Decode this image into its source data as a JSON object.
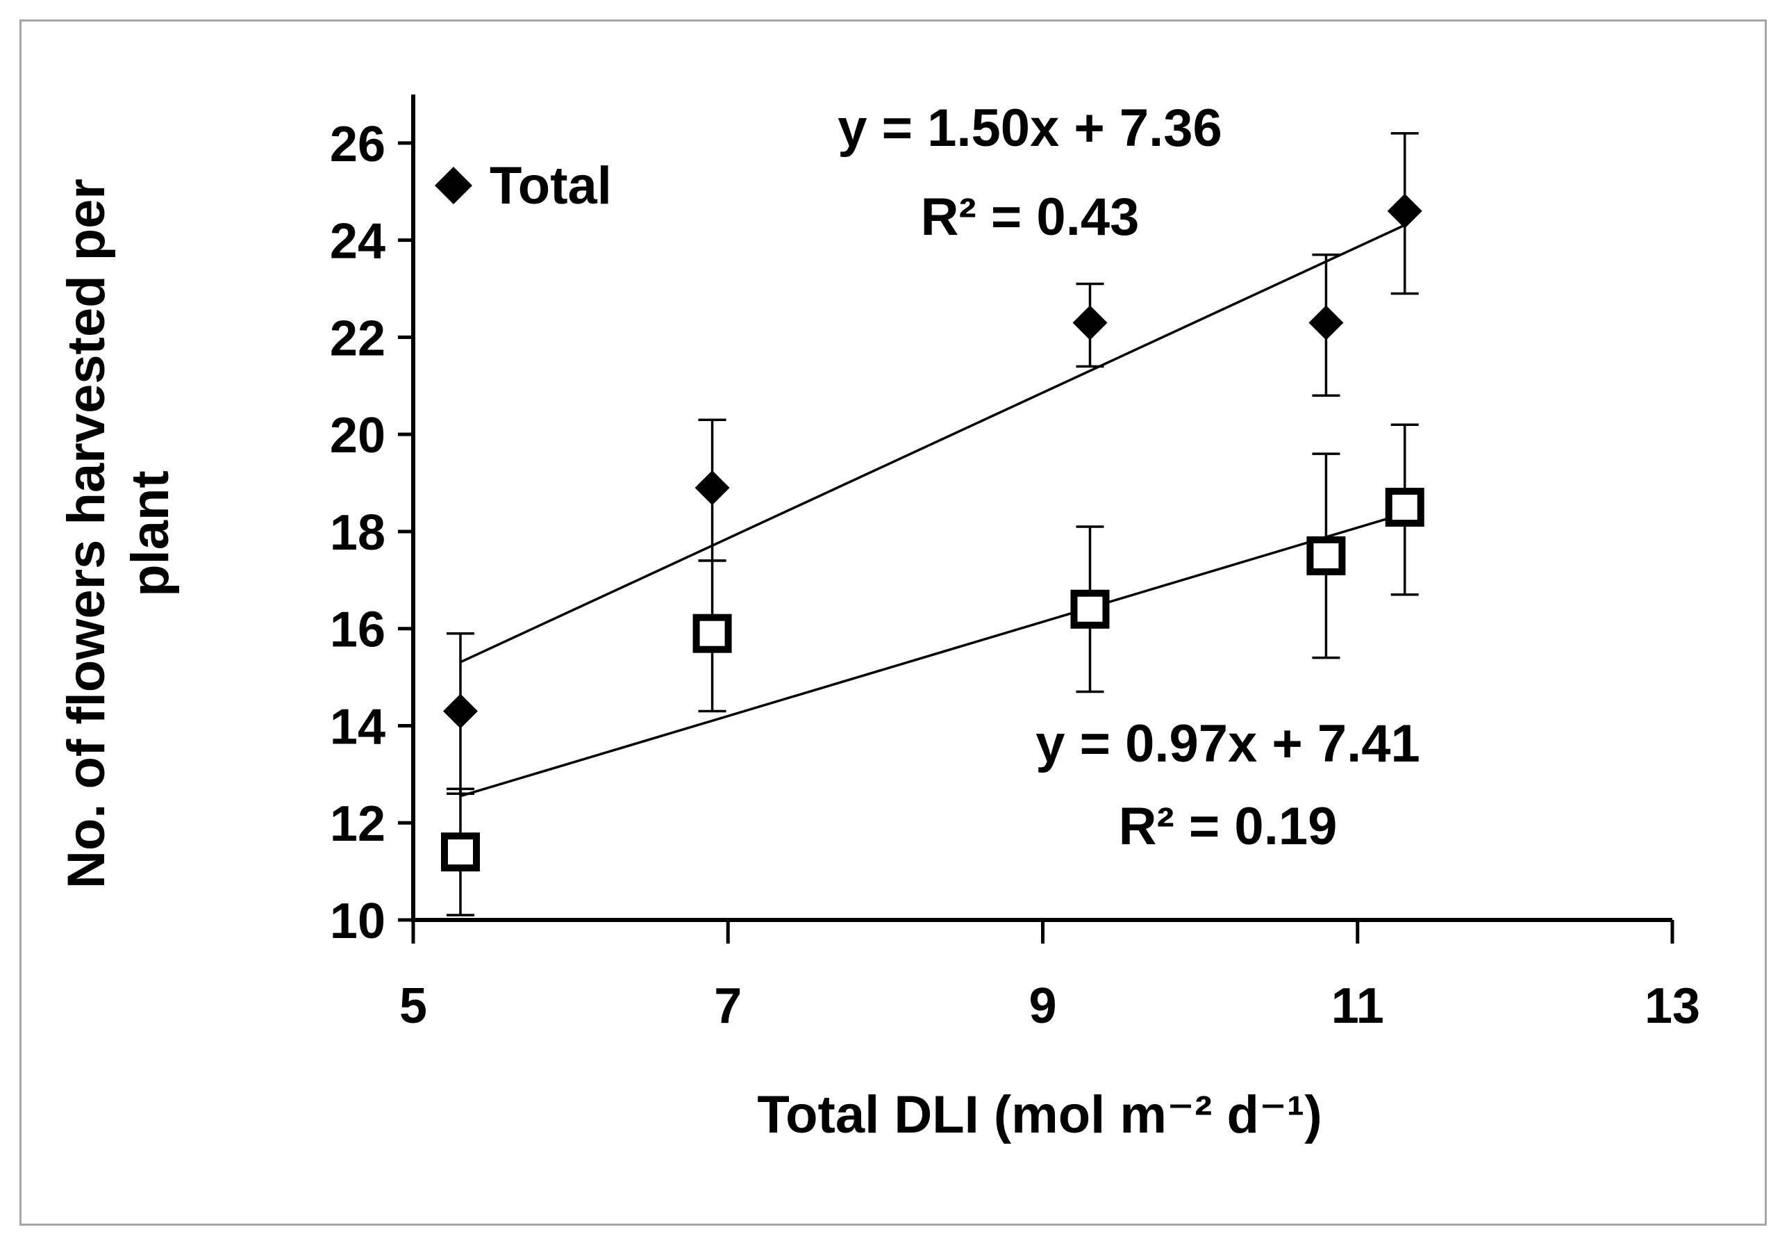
{
  "chart_data": {
    "type": "scatter",
    "title": "",
    "xlabel": "Total DLI (mol m⁻² d⁻¹)",
    "ylabel": "No. of flowers harvested per plant",
    "xlim": [
      5,
      13
    ],
    "ylim": [
      10,
      27
    ],
    "xticks": [
      5,
      7,
      9,
      11,
      13
    ],
    "yticks": [
      10,
      12,
      14,
      16,
      18,
      20,
      22,
      24,
      26
    ],
    "grid": false,
    "legend_position": "top-left",
    "series": [
      {
        "name": "Total",
        "marker": "diamond",
        "x": [
          5.3,
          6.9,
          9.3,
          10.8,
          11.3
        ],
        "y": [
          14.3,
          18.9,
          22.3,
          22.3,
          24.6
        ],
        "err_low": [
          12.6,
          17.4,
          21.4,
          20.8,
          22.9
        ],
        "err_high": [
          15.9,
          20.3,
          23.1,
          23.7,
          26.2
        ],
        "trendline": {
          "slope": 1.5,
          "intercept": 7.36,
          "x_range": [
            5.3,
            11.3
          ]
        },
        "equation": "y = 1.50x + 7.36",
        "r2": "R² = 0.43"
      },
      {
        "name": "",
        "marker": "square-open",
        "x": [
          5.3,
          6.9,
          9.3,
          10.8,
          11.3
        ],
        "y": [
          11.4,
          15.9,
          16.4,
          17.5,
          18.5
        ],
        "err_low": [
          10.1,
          14.3,
          14.7,
          15.4,
          16.7
        ],
        "err_high": [
          12.7,
          17.4,
          18.1,
          19.6,
          20.2
        ],
        "trendline": {
          "slope": 0.97,
          "intercept": 7.41,
          "x_range": [
            5.3,
            11.3
          ]
        },
        "equation": "y = 0.97x + 7.41",
        "r2": "R² = 0.19"
      }
    ],
    "legend": [
      {
        "label": "Total",
        "marker": "diamond"
      }
    ]
  }
}
